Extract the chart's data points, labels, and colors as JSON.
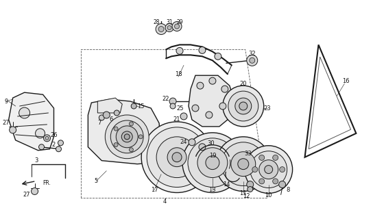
{
  "bg_color": "#ffffff",
  "line_color": "#1a1a1a",
  "fig_width": 5.44,
  "fig_height": 3.2,
  "dpi": 100
}
